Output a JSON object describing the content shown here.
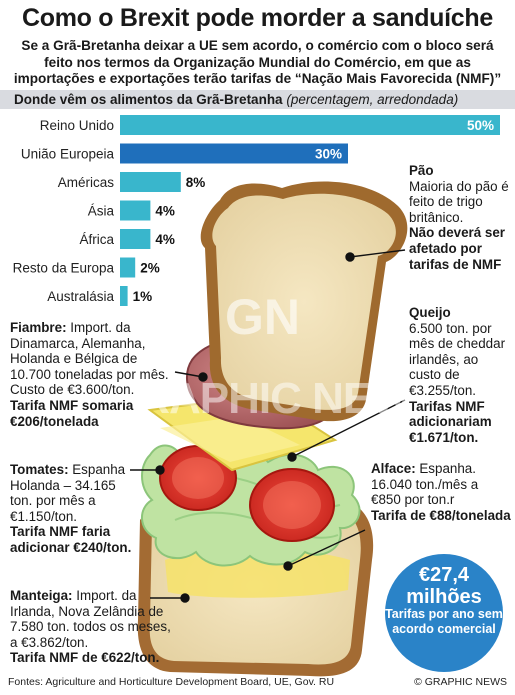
{
  "header": {
    "title": "Como o Brexit pode morder a sanduíche",
    "subtitle": "Se a Grã-Bretanha deixar a UE sem acordo, o comércio com o bloco será feito nos termos da Organização Mundial do Comércio, em que as importações e exportações terão tarifas de “Nação Mais Favorecida (NMF)”"
  },
  "section": {
    "title": "Donde vêm os alimentos da Grã-Bretanha",
    "note": "(percentagem, arredondada)"
  },
  "chart_data": {
    "type": "bar",
    "orientation": "horizontal",
    "categories": [
      "Reino Unido",
      "União Europeia",
      "Américas",
      "Ásia",
      "África",
      "Resto da Europa",
      "Australásia"
    ],
    "values": [
      50,
      30,
      8,
      4,
      4,
      2,
      1
    ],
    "value_labels": [
      "50%",
      "30%",
      "8%",
      "4%",
      "4%",
      "2%",
      "1%"
    ],
    "xlim": [
      0,
      50
    ],
    "colors": {
      "bar": "#39b6cc",
      "highlight": "#1f6fbb"
    },
    "highlight_index": 1
  },
  "annotations": {
    "pao": {
      "head": "Pão",
      "body": "Maioria do pão é feito de trigo britânico.",
      "bold": "Não deverá ser afetado por tarifas de NMF"
    },
    "queijo": {
      "head": "Queijo",
      "body": "6.500 ton. por mês de cheddar irlandês, ao custo de €3.255/ton.",
      "bold": "Tarifas NMF adicionariam €1.671/ton."
    },
    "fiambre": {
      "head": "Fiambre:",
      "body": " Import. da Dinamarca, Alemanha, Holanda e Bélgica de 10.700 toneladas por mês. Custo de €3.600/ton.",
      "bold": "Tarifa NMF somaria €206/tonelada"
    },
    "tomates": {
      "head": "Tomates:",
      "body": " Espanha Holanda – 34.165 ton. por mês a €1.150/ton.",
      "bold": "Tarifa NMF faria adicionar €240/ton."
    },
    "alface": {
      "head": "Alface:",
      "body": " Espanha. 16.040 ton./mês a €850 por ton.r",
      "bold": "Tarifa de €88/tonelada"
    },
    "manteiga": {
      "head": "Manteiga:",
      "body": " Import. da Irlanda, Nova Zelândia de 7.580 ton. todos os meses, a €3.862/ton.",
      "bold": "Tarifa NMF de €622/ton."
    }
  },
  "kpi": {
    "value": "€27,4 milhões",
    "label": "Tarifas por ano sem acordo comercial",
    "color": "#2a83c8"
  },
  "watermark": {
    "text": "GRAPHIC NEWS",
    "logo": "GN"
  },
  "footer": {
    "sources": "Fontes: Agriculture and Horticulture Development Board, UE, Gov. RU",
    "credit": "© GRAPHIC NEWS"
  }
}
